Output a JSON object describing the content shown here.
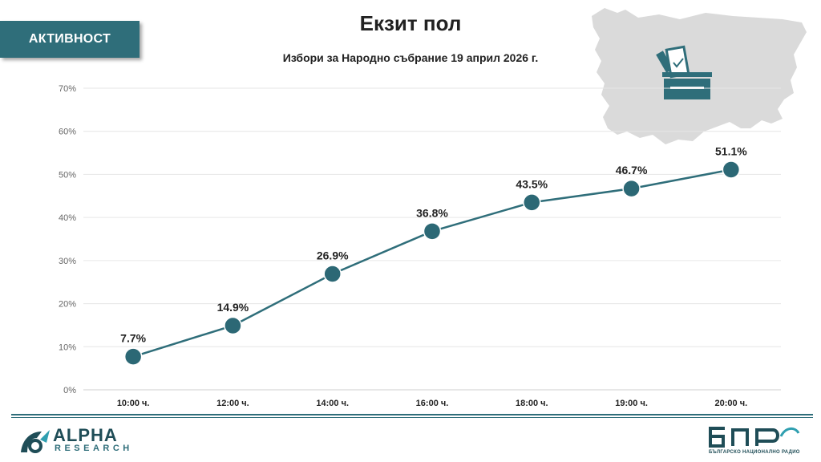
{
  "badge": "АКТИВНОСТ",
  "title": "Екзит пол",
  "subtitle": "Избори за Народно събрание 19 април 2026 г.",
  "brand": {
    "name": "ALPHA",
    "sub": "RESEARCH"
  },
  "broadcaster": {
    "sub": "БЪЛГАРСКО НАЦИОНАЛНО РАДИО"
  },
  "colors": {
    "accent": "#2f6e7a",
    "point": "#2c6875",
    "map": "#dadada"
  },
  "chart_data": {
    "type": "line",
    "categories": [
      "10:00 ч.",
      "12:00 ч.",
      "14:00 ч.",
      "16:00 ч.",
      "18:00 ч.",
      "19:00 ч.",
      "20:00 ч."
    ],
    "values": [
      7.7,
      14.9,
      26.9,
      36.8,
      43.5,
      46.7,
      51.1
    ],
    "data_labels": [
      "7.7%",
      "14.9%",
      "26.9%",
      "36.8%",
      "43.5%",
      "46.7%",
      "51.1%"
    ],
    "yticks": [
      "0%",
      "10%",
      "20%",
      "30%",
      "40%",
      "50%",
      "60%",
      "70%"
    ],
    "ylim": [
      0,
      70
    ],
    "grid": true,
    "title": "",
    "xlabel": "",
    "ylabel": ""
  }
}
